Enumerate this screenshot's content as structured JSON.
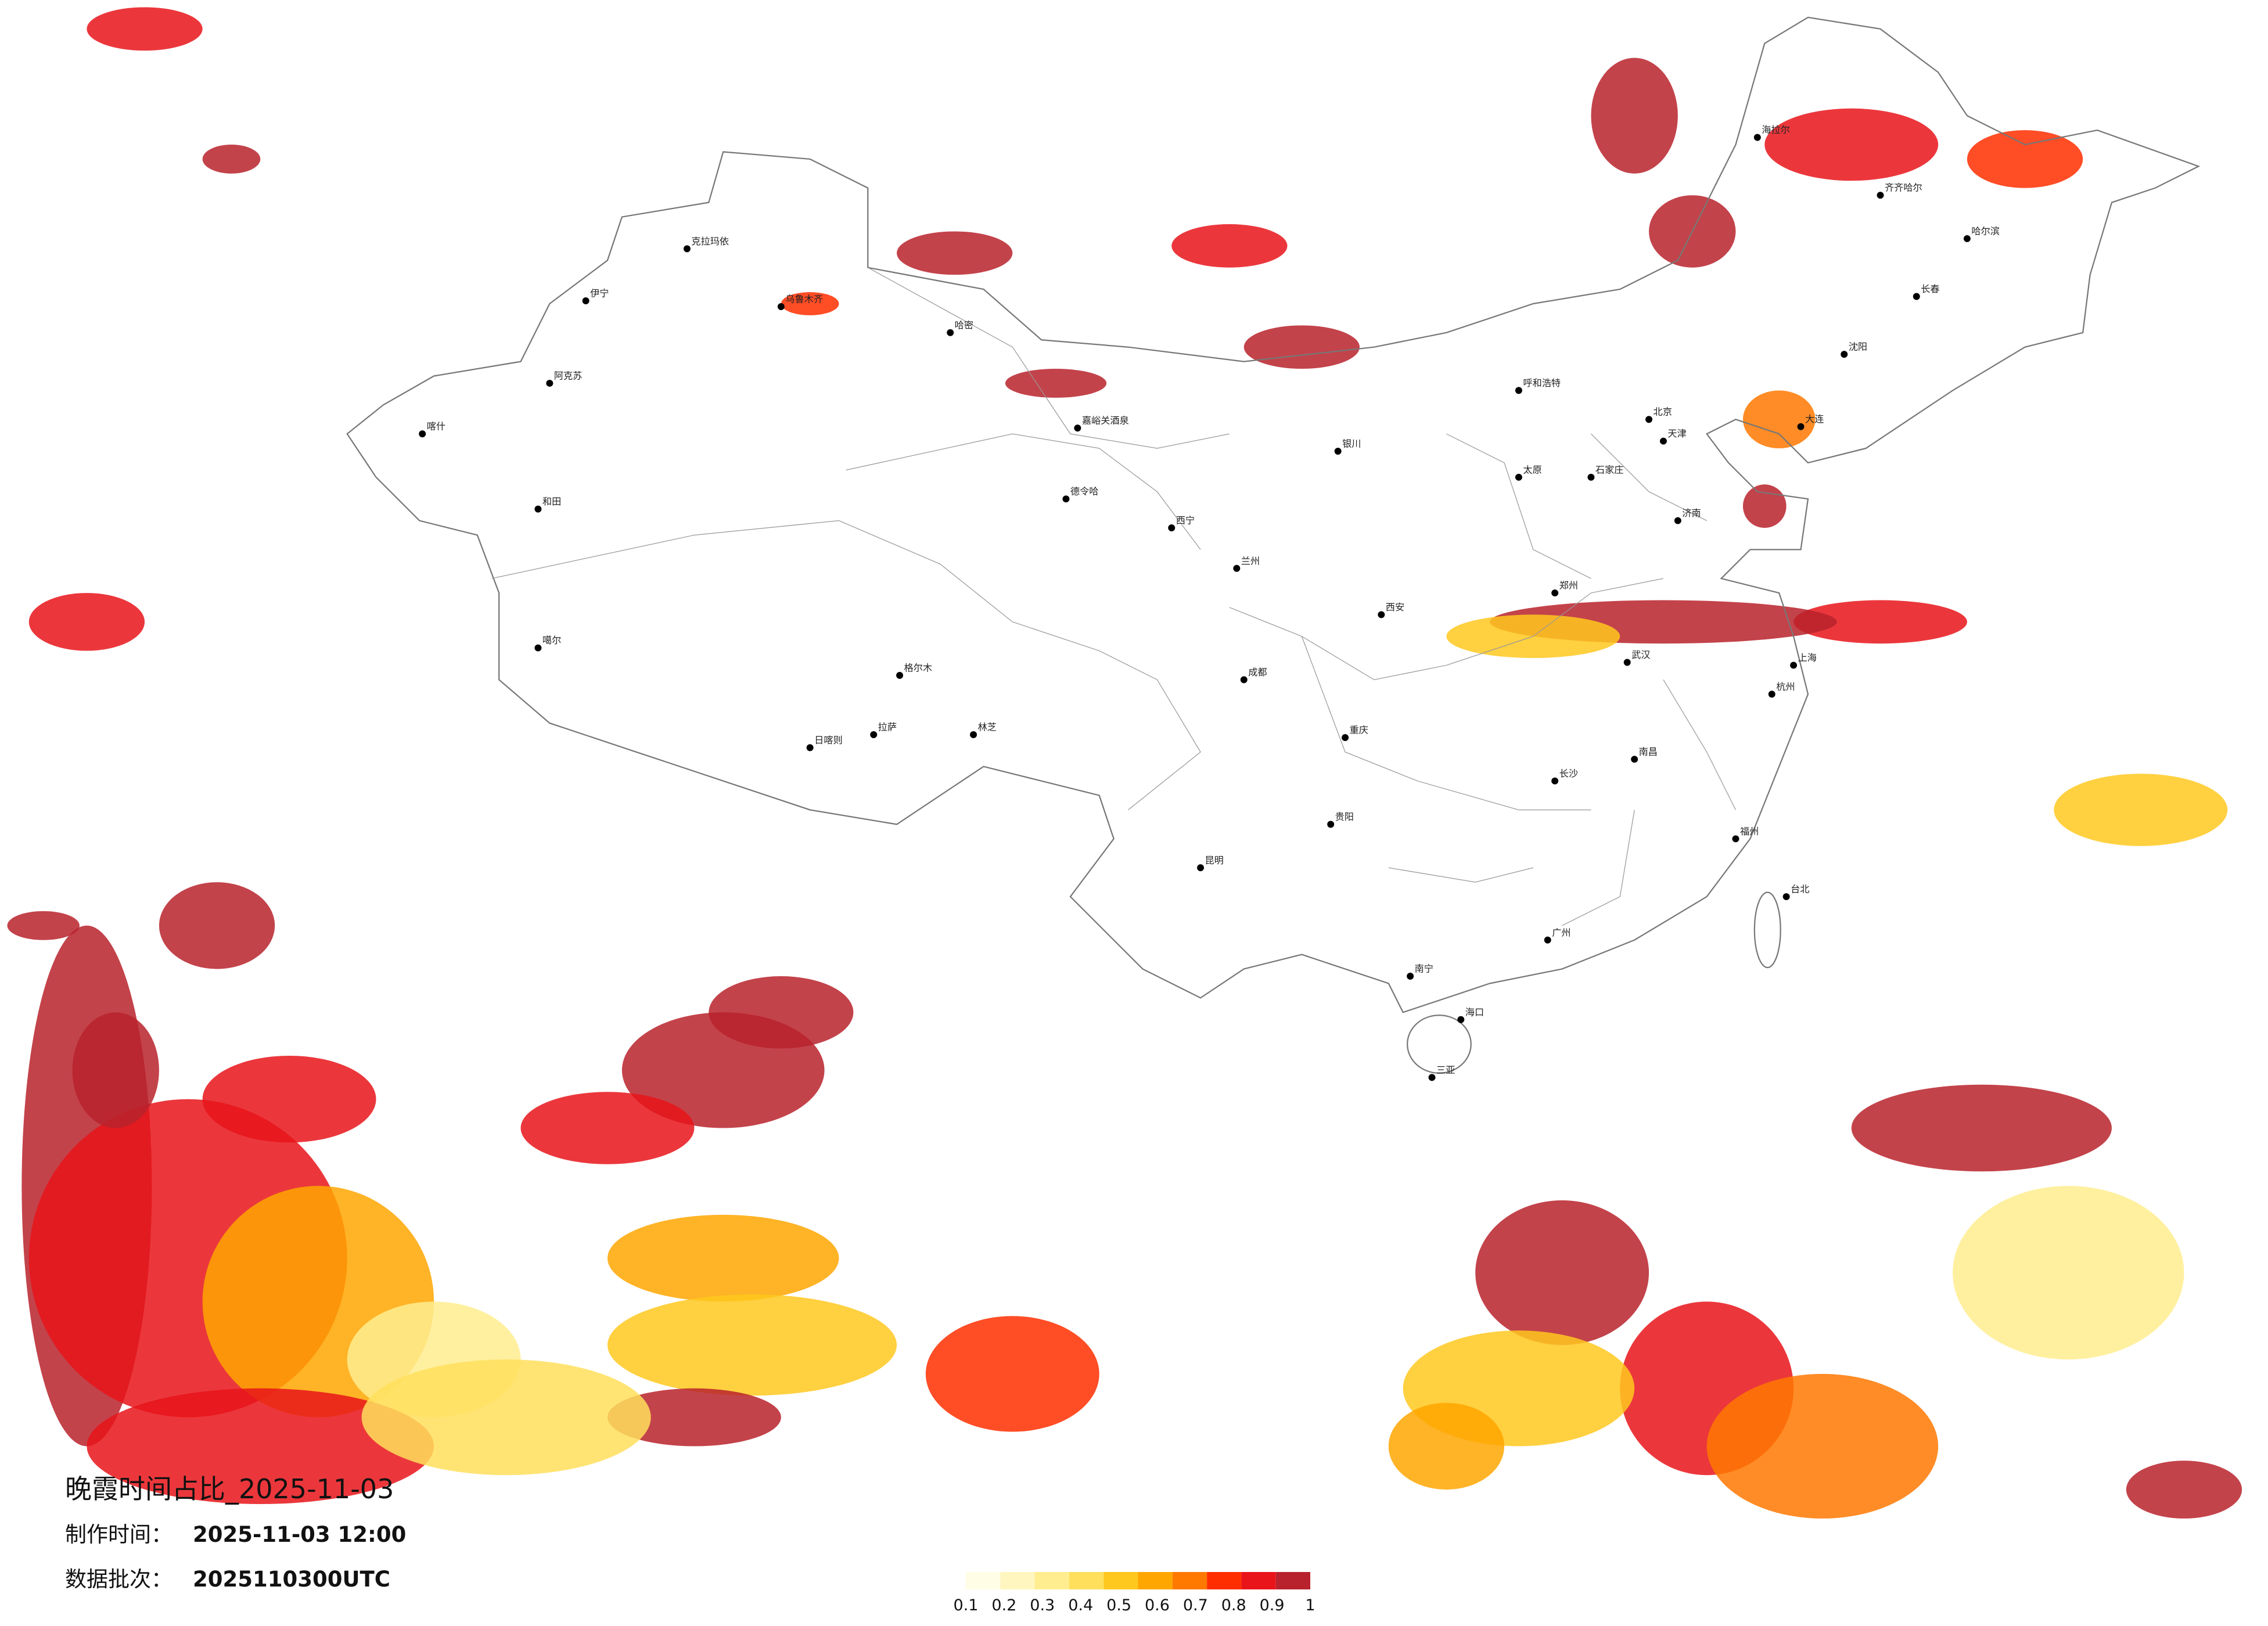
{
  "title": "晚霞时间占比_2025-11-03",
  "made_label": "制作时间：",
  "made_time": "2025-11-03 12:00",
  "batch_label": "数据批次：",
  "batch": "2025110300UTC",
  "legend": {
    "colors": [
      "#fffde6",
      "#fff6bf",
      "#ffed8f",
      "#ffdf5c",
      "#ffc81f",
      "#ffa600",
      "#ff7800",
      "#ff2e00",
      "#e8141a",
      "#b8222c"
    ],
    "ticks": [
      0.1,
      0.2,
      0.3,
      0.4,
      0.5,
      0.6,
      0.7,
      0.8,
      0.9,
      1
    ]
  },
  "cities": [
    "克拉玛依",
    "伊宁",
    "乌鲁木齐",
    "阿克苏",
    "喀什",
    "和田",
    "哈密",
    "嘉峪关酒泉",
    "德令哈",
    "格尔木",
    "噶尔",
    "日喀则",
    "拉萨",
    "林芝",
    "西宁",
    "兰州",
    "银川",
    "呼和浩特",
    "北京",
    "天津",
    "石家庄",
    "太原",
    "济南",
    "郑州",
    "西安",
    "成都",
    "重庆",
    "武汉",
    "上海",
    "杭州",
    "长沙",
    "南昌",
    "福州",
    "广州",
    "南宁",
    "昆明",
    "贵阳",
    "海口",
    "三亚",
    "台北",
    "哈尔滨",
    "长春",
    "沈阳",
    "大连",
    "齐齐哈尔",
    "海拉尔"
  ]
}
